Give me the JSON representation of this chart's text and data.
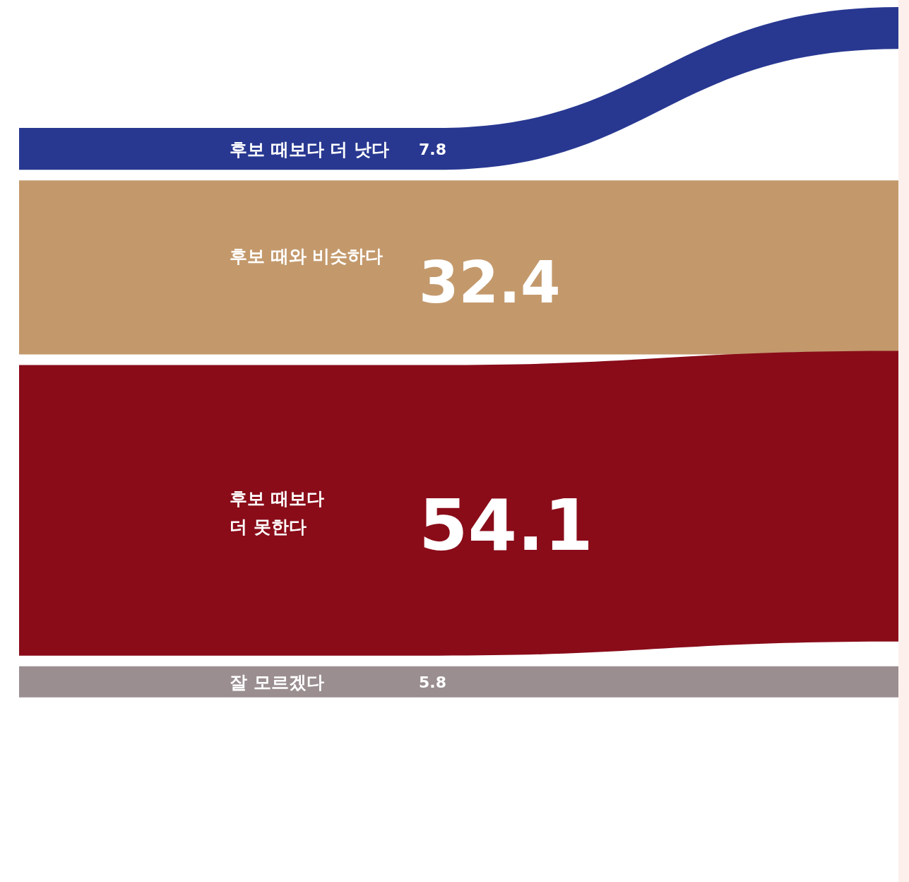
{
  "chart_data": {
    "type": "other",
    "categories": [
      "후보 때보다 더 낫다",
      "후보 때와 비슷하다",
      "후보 때보다 더 못한다",
      "잘 모르겠다"
    ],
    "values": [
      7.8,
      32.4,
      54.1,
      5.8
    ],
    "colors": [
      "#283891",
      "#c3996c",
      "#8a0c19",
      "#9a8e90"
    ],
    "data_labels": true
  }
}
